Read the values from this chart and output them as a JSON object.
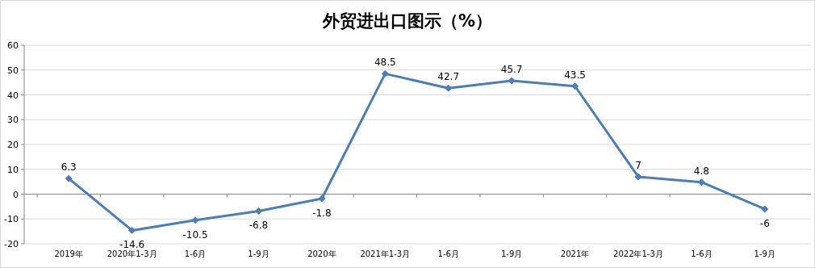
{
  "chart_data": {
    "type": "line",
    "title": "外贸进出口图示（%）",
    "categories": [
      "2019年",
      "2020年1-3月",
      "1-6月",
      "1-9月",
      "2020年",
      "2021年1-3月",
      "1-6月",
      "1-9月",
      "2021年",
      "2022年1-3月",
      "1-6月",
      "1-9月"
    ],
    "values": [
      6.3,
      -14.6,
      -10.5,
      -6.8,
      -1.8,
      48.5,
      42.7,
      45.7,
      43.5,
      7,
      4.8,
      -6
    ],
    "color": "#4a7ebb",
    "ylim": [
      -20,
      60
    ],
    "yticks": [
      -20,
      -10,
      0,
      10,
      20,
      30,
      40,
      50,
      60
    ],
    "grid": "y",
    "marker": "diamond",
    "data_labels": true
  }
}
